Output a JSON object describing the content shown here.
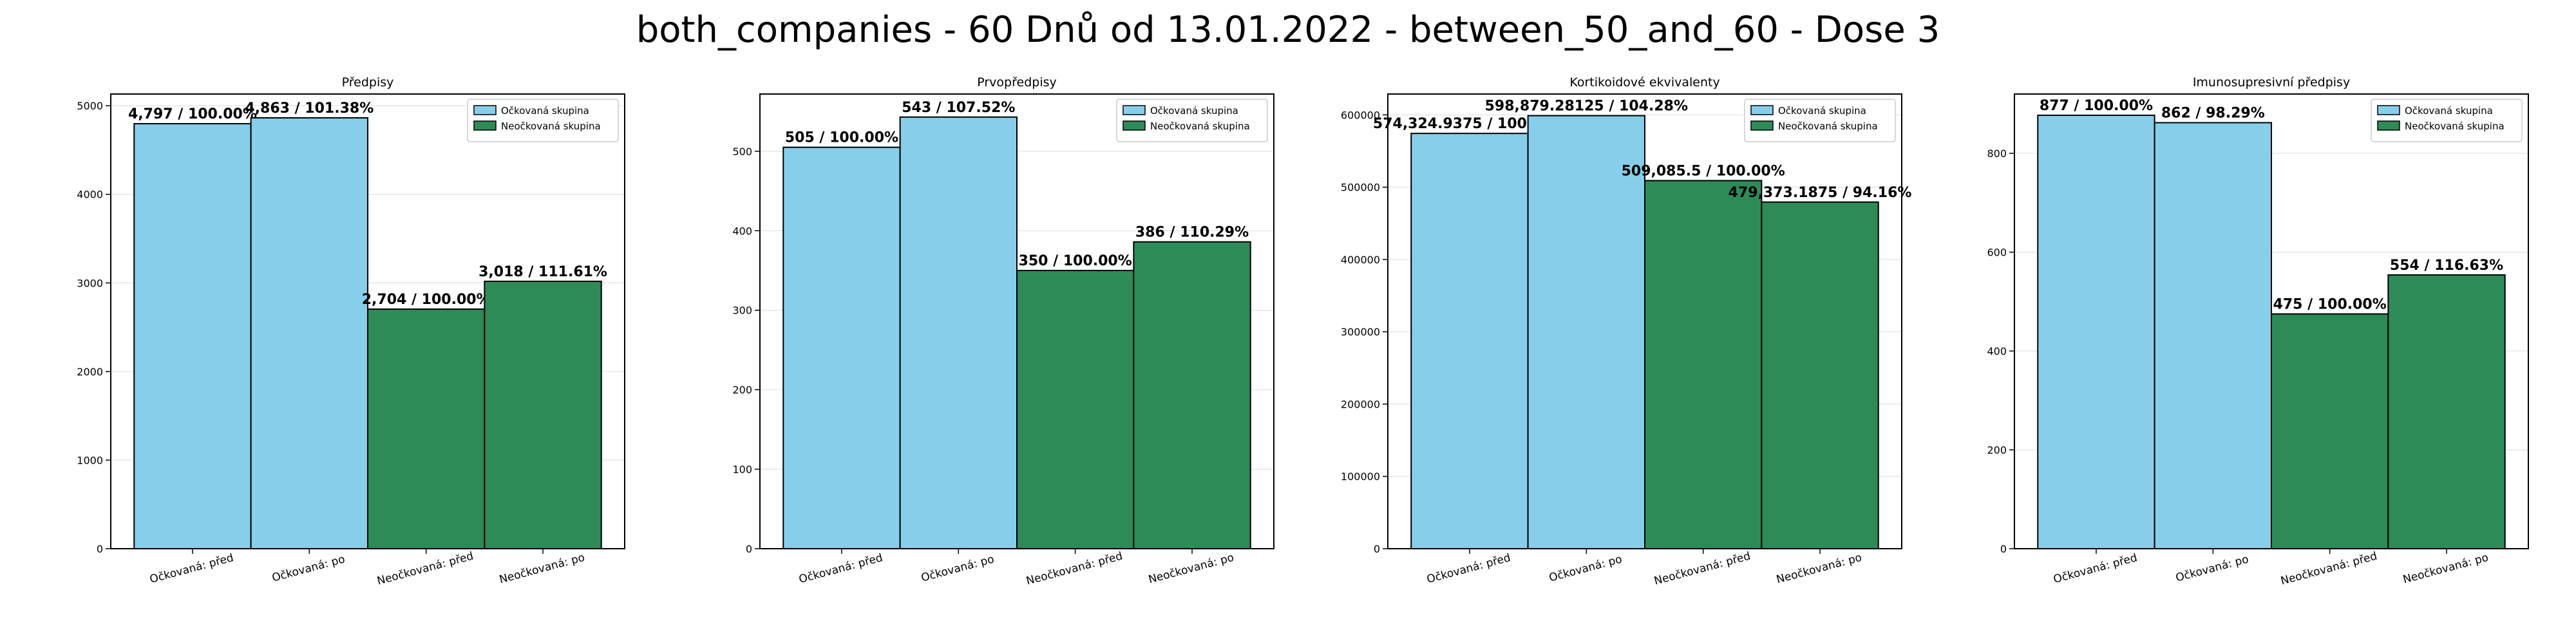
{
  "suptitle": "both_companies - 60 Dnů od 13.01.2022 - between_50_and_60 - Dose 3",
  "colors": {
    "vaccinated": "#87CEEB",
    "unvaccinated": "#2E8B57",
    "edge": "#000000",
    "grid": "#e6e6e6"
  },
  "chart_data": [
    {
      "type": "bar",
      "title": "Předpisy",
      "categories": [
        "Očkovaná: před",
        "Očkovaná: po",
        "Neočkovaná: před",
        "Neočkovaná: po"
      ],
      "values": [
        4797,
        4863,
        2704,
        3018
      ],
      "labels": [
        "4,797 / 100.00%",
        "4,863 / 101.38%",
        "2,704 / 100.00%",
        "3,018 / 111.61%"
      ],
      "groups": [
        "Očkovaná skupina",
        "Očkovaná skupina",
        "Neočkovaná skupina",
        "Neočkovaná skupina"
      ],
      "legend": [
        "Očkovaná skupina",
        "Neočkovaná skupina"
      ],
      "legend_position": "top-right",
      "ylim": [
        0,
        5132
      ],
      "yticks": [
        0,
        1000,
        2000,
        3000,
        4000,
        5000
      ],
      "ytick_labels": [
        "0",
        "1000",
        "2000",
        "3000",
        "4000",
        "5000"
      ],
      "grid": true
    },
    {
      "type": "bar",
      "title": "Prvopředpisy",
      "categories": [
        "Očkovaná: před",
        "Očkovaná: po",
        "Neočkovaná: před",
        "Neočkovaná: po"
      ],
      "values": [
        505,
        543,
        350,
        386
      ],
      "labels": [
        "505 / 100.00%",
        "543 / 107.52%",
        "350 / 100.00%",
        "386 / 110.29%"
      ],
      "groups": [
        "Očkovaná skupina",
        "Očkovaná skupina",
        "Neočkovaná skupina",
        "Neočkovaná skupina"
      ],
      "legend": [
        "Očkovaná skupina",
        "Neočkovaná skupina"
      ],
      "legend_position": "top-right",
      "ylim": [
        0,
        572
      ],
      "yticks": [
        0,
        100,
        200,
        300,
        400,
        500
      ],
      "ytick_labels": [
        "0",
        "100",
        "200",
        "300",
        "400",
        "500"
      ],
      "grid": true
    },
    {
      "type": "bar",
      "title": "Kortikoidové ekvivalenty",
      "categories": [
        "Očkovaná: před",
        "Očkovaná: po",
        "Neočkovaná: před",
        "Neočkovaná: po"
      ],
      "values": [
        574324.9375,
        598879.28125,
        509085.5,
        479373.1875
      ],
      "labels": [
        "574,324.9375 / 100.00%",
        "598,879.28125 / 104.28%",
        "509,085.5 / 100.00%",
        "479,373.1875 / 94.16%"
      ],
      "groups": [
        "Očkovaná skupina",
        "Očkovaná skupina",
        "Neočkovaná skupina",
        "Neočkovaná skupina"
      ],
      "legend": [
        "Očkovaná skupina",
        "Neočkovaná skupina"
      ],
      "legend_position": "top-right",
      "ylim": [
        0,
        628823
      ],
      "yticks": [
        0,
        100000,
        200000,
        300000,
        400000,
        500000,
        600000
      ],
      "ytick_labels": [
        "0",
        "100000",
        "200000",
        "300000",
        "400000",
        "500000",
        "600000"
      ],
      "grid": true
    },
    {
      "type": "bar",
      "title": "Imunosupresivní předpisy",
      "categories": [
        "Očkovaná: před",
        "Očkovaná: po",
        "Neočkovaná: před",
        "Neočkovaná: po"
      ],
      "values": [
        877,
        862,
        475,
        554
      ],
      "labels": [
        "877 / 100.00%",
        "862 / 98.29%",
        "475 / 100.00%",
        "554 / 116.63%"
      ],
      "groups": [
        "Očkovaná skupina",
        "Očkovaná skupina",
        "Neočkovaná skupina",
        "Neočkovaná skupina"
      ],
      "legend": [
        "Očkovaná skupina",
        "Neočkovaná skupina"
      ],
      "legend_position": "top-right",
      "ylim": [
        0,
        920
      ],
      "yticks": [
        0,
        200,
        400,
        600,
        800
      ],
      "ytick_labels": [
        "0",
        "200",
        "400",
        "600",
        "800"
      ],
      "grid": true
    }
  ]
}
